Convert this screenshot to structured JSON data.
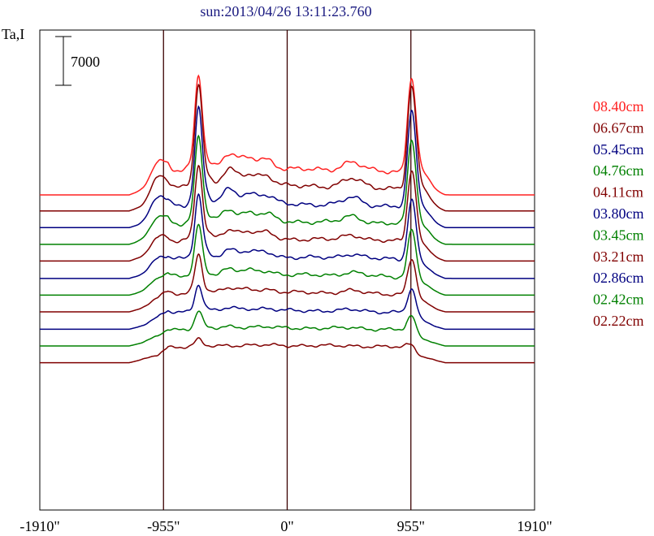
{
  "chart_data": {
    "type": "line",
    "title": "sun:2013/04/26 13:11:23.760",
    "ylabel": "Ta,I",
    "scale_bar_label": "7000",
    "xlabel": "",
    "xlim": [
      -1910,
      1910
    ],
    "x_tick_values": [
      -1910,
      -955,
      0,
      955,
      1910
    ],
    "x_tick_labels": [
      "-1910\"",
      "-955\"",
      "0\"",
      "955\"",
      "1910\""
    ],
    "vertical_markers": [
      -955,
      0,
      955
    ],
    "grid": false,
    "legend_placement": "right",
    "limb_features": [
      {
        "x": -1000,
        "width": 55,
        "weight": 0.28
      },
      {
        "x": -685,
        "width": 27,
        "weight": 1.0
      },
      {
        "x": -665,
        "width": 55,
        "weight": 0.22
      },
      {
        "x": -450,
        "width": 55,
        "weight": 0.2
      },
      {
        "x": -300,
        "width": 60,
        "weight": 0.14
      },
      {
        "x": -160,
        "width": 60,
        "weight": 0.12
      },
      {
        "x": 500,
        "width": 70,
        "weight": 0.1
      },
      {
        "x": 940,
        "width": 22,
        "weight": 0.35
      },
      {
        "x": 970,
        "width": 30,
        "weight": 1.0
      },
      {
        "x": 1040,
        "width": 60,
        "weight": 0.18
      }
    ],
    "series": [
      {
        "name": "08.40cm",
        "color": "#ff2020",
        "baseline_offset": 0,
        "peak": 11500,
        "disk": 3300
      },
      {
        "name": "06.67cm",
        "color": "#800000",
        "baseline_offset": -2300,
        "peak": 12600,
        "disk": 3200
      },
      {
        "name": "05.45cm",
        "color": "#000080",
        "baseline_offset": -4700,
        "peak": 11800,
        "disk": 3000
      },
      {
        "name": "04.76cm",
        "color": "#008000",
        "baseline_offset": -7100,
        "peak": 10600,
        "disk": 2900
      },
      {
        "name": "04.11cm",
        "color": "#800000",
        "baseline_offset": -9500,
        "peak": 9300,
        "disk": 2800
      },
      {
        "name": "03.80cm",
        "color": "#000080",
        "baseline_offset": -12000,
        "peak": 7900,
        "disk": 2700
      },
      {
        "name": "03.45cm",
        "color": "#008000",
        "baseline_offset": -14400,
        "peak": 6400,
        "disk": 2600
      },
      {
        "name": "03.21cm",
        "color": "#800000",
        "baseline_offset": -16800,
        "peak": 5000,
        "disk": 2500
      },
      {
        "name": "02.86cm",
        "color": "#000080",
        "baseline_offset": -19300,
        "peak": 3500,
        "disk": 2400
      },
      {
        "name": "02.42cm",
        "color": "#008000",
        "baseline_offset": -21700,
        "peak": 2300,
        "disk": 2300
      },
      {
        "name": "02.22cm",
        "color": "#800000",
        "baseline_offset": -24100,
        "peak": 900,
        "disk": 2200
      }
    ]
  }
}
